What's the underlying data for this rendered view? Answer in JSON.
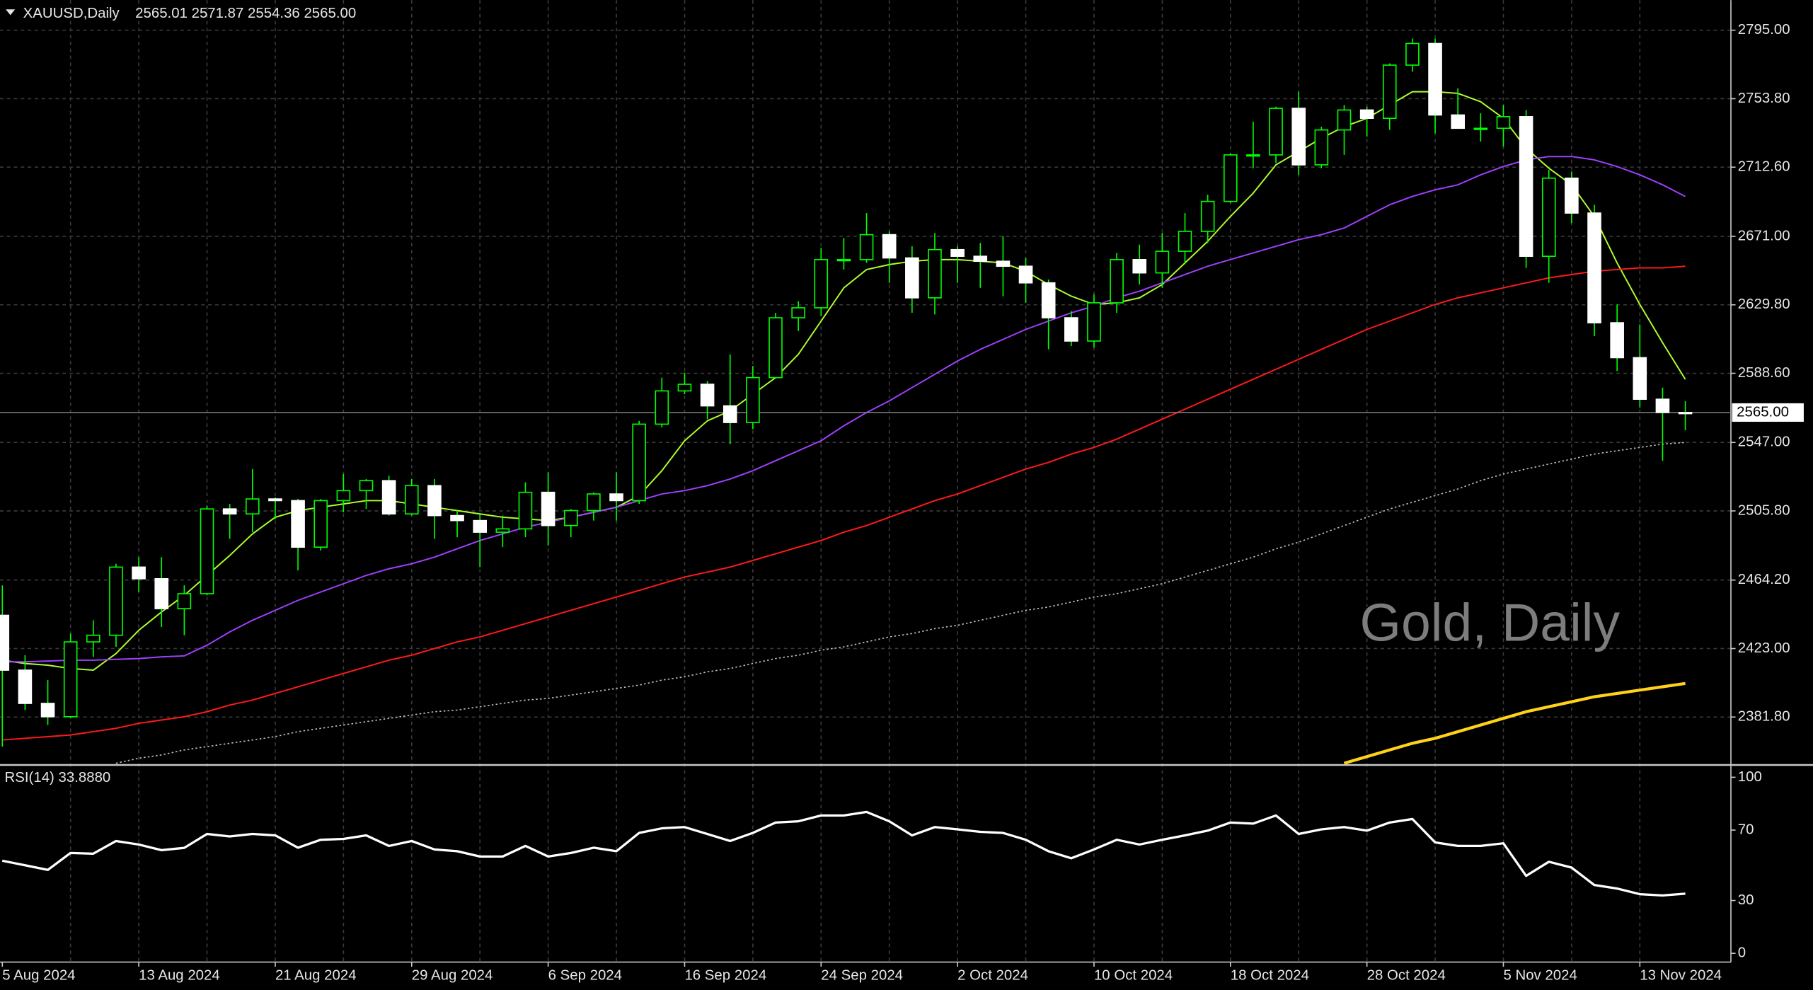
{
  "chart_data": [
    {
      "type": "candlestick",
      "header": {
        "symbol": "XAUUSD,Daily",
        "ohlc": "2565.01 2571.87 2554.36 2565.00"
      },
      "watermark": "Gold, Daily",
      "categories": [
        "5 Aug 2024",
        null,
        null,
        null,
        null,
        null,
        "13 Aug 2024",
        null,
        null,
        null,
        null,
        null,
        "21 Aug 2024",
        null,
        null,
        null,
        null,
        null,
        "29 Aug 2024",
        null,
        null,
        null,
        null,
        null,
        "6 Sep 2024",
        null,
        null,
        null,
        null,
        null,
        "16 Sep 2024",
        null,
        null,
        null,
        null,
        null,
        "24 Sep 2024",
        null,
        null,
        null,
        null,
        null,
        "2 Oct 2024",
        null,
        null,
        null,
        null,
        null,
        "10 Oct 2024",
        null,
        null,
        null,
        null,
        null,
        "18 Oct 2024",
        null,
        null,
        null,
        null,
        null,
        "28 Oct 2024",
        null,
        null,
        null,
        null,
        null,
        "5 Nov 2024",
        null,
        null,
        null,
        null,
        null,
        "13 Nov 2024",
        null,
        null
      ],
      "open": [
        2443,
        2410,
        2390,
        2382,
        2427,
        2431,
        2472,
        2465,
        2447,
        2456,
        2507,
        2504,
        2513,
        2512,
        2484,
        2512,
        2518,
        2524,
        2504,
        2521,
        2503,
        2500,
        2493,
        2495,
        2517,
        2497,
        2506,
        2516,
        2512,
        2558,
        2578,
        2582,
        2569,
        2559,
        2586,
        2622,
        2628,
        2657,
        2657,
        2672,
        2658,
        2634,
        2663,
        2659,
        2656,
        2653,
        2643,
        2622,
        2608,
        2631,
        2657,
        2649,
        2662,
        2674,
        2692,
        2720,
        2720,
        2748,
        2714,
        2735,
        2747,
        2742,
        2774,
        2787,
        2744,
        2736,
        2736,
        2743,
        2659,
        2706,
        2685,
        2619,
        2598,
        2573,
        2565.01
      ],
      "high": [
        2461,
        2419,
        2404,
        2432,
        2440,
        2474,
        2478,
        2478,
        2461,
        2509,
        2510,
        2531,
        2514,
        2513,
        2513,
        2528,
        2525,
        2527,
        2525,
        2525,
        2506,
        2504,
        2503,
        2523,
        2529,
        2507,
        2517,
        2529,
        2560,
        2586,
        2589,
        2584,
        2600,
        2593,
        2625,
        2632,
        2664,
        2670,
        2685,
        2674,
        2665,
        2673,
        2665,
        2667,
        2671,
        2658,
        2645,
        2626,
        2636,
        2661,
        2666,
        2673,
        2685,
        2696,
        2721,
        2740,
        2749,
        2758,
        2737,
        2750,
        2749,
        2775,
        2790,
        2790,
        2760,
        2745,
        2750,
        2747,
        2711,
        2710,
        2690,
        2630,
        2618,
        2580,
        2571.87
      ],
      "low": [
        2364,
        2386,
        2377,
        2381,
        2418,
        2424,
        2457,
        2436,
        2431,
        2455,
        2489,
        2493,
        2501,
        2470,
        2482,
        2505,
        2507,
        2503,
        2503,
        2489,
        2490,
        2472,
        2484,
        2490,
        2485,
        2490,
        2500,
        2500,
        2510,
        2556,
        2576,
        2561,
        2546,
        2555,
        2586,
        2614,
        2623,
        2651,
        2655,
        2643,
        2625,
        2624,
        2643,
        2640,
        2635,
        2631,
        2603,
        2605,
        2604,
        2625,
        2642,
        2640,
        2655,
        2667,
        2691,
        2712,
        2715,
        2708,
        2712,
        2720,
        2731,
        2735,
        2770,
        2733,
        2736,
        2728,
        2725,
        2652,
        2643,
        2679,
        2611,
        2590,
        2568,
        2536,
        2554.36
      ],
      "close": [
        2410,
        2390,
        2382,
        2427,
        2431,
        2472,
        2465,
        2447,
        2456,
        2507,
        2504,
        2513,
        2512,
        2484,
        2512,
        2518,
        2524,
        2504,
        2521,
        2503,
        2500,
        2493,
        2495,
        2517,
        2497,
        2506,
        2516,
        2512,
        2558,
        2578,
        2582,
        2569,
        2559,
        2586,
        2622,
        2628,
        2657,
        2657,
        2672,
        2658,
        2634,
        2663,
        2659,
        2656,
        2653,
        2643,
        2622,
        2608,
        2631,
        2657,
        2649,
        2662,
        2674,
        2692,
        2720,
        2720,
        2748,
        2714,
        2735,
        2747,
        2742,
        2774,
        2787,
        2744,
        2736,
        2736,
        2743,
        2659,
        2706,
        2685,
        2619,
        2598,
        2573,
        2565,
        2565.0
      ],
      "up_color": "#00ff00",
      "down_color": "#ffffff",
      "series": [
        {
          "color": "#adff2f",
          "style": "solid",
          "values": [
            2416,
            2414,
            2413,
            2411,
            2410,
            2420,
            2434,
            2445,
            2455,
            2467,
            2479,
            2492,
            2502,
            2506,
            2508,
            2510,
            2512,
            2512,
            2510,
            2508,
            2506,
            2504,
            2502,
            2501,
            2500,
            2502,
            2505,
            2508,
            2515,
            2530,
            2548,
            2560,
            2566,
            2576,
            2586,
            2600,
            2620,
            2640,
            2651,
            2654,
            2656,
            2657,
            2657,
            2656,
            2655,
            2650,
            2642,
            2635,
            2630,
            2631,
            2634,
            2642,
            2655,
            2668,
            2683,
            2697,
            2714,
            2722,
            2730,
            2737,
            2742,
            2750,
            2758,
            2758,
            2757,
            2752,
            2742,
            2724,
            2712,
            2702,
            2683,
            2655,
            2630,
            2607,
            2585
          ]
        },
        {
          "color": "#a040ff",
          "style": "solid",
          "values": [
            2415,
            2415,
            2415.5,
            2416,
            2416,
            2416.5,
            2417,
            2418,
            2418.6,
            2425,
            2433,
            2440,
            2446,
            2452,
            2457,
            2462,
            2467,
            2471,
            2474,
            2478,
            2483,
            2488,
            2492,
            2496,
            2499,
            2502,
            2505,
            2508,
            2512,
            2516,
            2518,
            2521,
            2525,
            2530,
            2536,
            2542,
            2548,
            2557,
            2565,
            2572,
            2580,
            2588,
            2596,
            2603,
            2609,
            2615,
            2620,
            2625,
            2629,
            2634,
            2638,
            2643,
            2648,
            2653,
            2657,
            2661,
            2665,
            2669,
            2672,
            2676,
            2683,
            2690,
            2695,
            2699,
            2702,
            2708,
            2713,
            2717,
            2719,
            2719,
            2717,
            2713,
            2708,
            2702,
            2695
          ]
        },
        {
          "color": "#ff1a1a",
          "style": "solid",
          "values": [
            2368,
            2369,
            2370,
            2371,
            2373,
            2375,
            2378,
            2380,
            2382,
            2385,
            2389,
            2392,
            2396,
            2400,
            2404,
            2408,
            2412,
            2416,
            2419,
            2423,
            2427,
            2430,
            2434,
            2438,
            2442,
            2446,
            2450,
            2454,
            2458,
            2462,
            2466,
            2469,
            2472,
            2476,
            2480,
            2484,
            2488,
            2493,
            2497,
            2502,
            2507,
            2512,
            2516,
            2521,
            2526,
            2531,
            2535,
            2540,
            2544,
            2549,
            2555,
            2561,
            2567,
            2573,
            2579,
            2585,
            2591,
            2597,
            2603,
            2609,
            2615,
            2620,
            2625,
            2630,
            2634,
            2637,
            2640,
            2643,
            2646,
            2648,
            2650,
            2651,
            2652,
            2652,
            2653
          ]
        },
        {
          "color": "#c0c0c0",
          "style": "dotted",
          "values": [
            null,
            null,
            null,
            null,
            null,
            2354,
            2357,
            2359,
            2362,
            2364,
            2366,
            2368,
            2370,
            2373,
            2375,
            2377,
            2379,
            2381,
            2383,
            2385,
            2386,
            2388,
            2390,
            2392,
            2393,
            2395,
            2397,
            2399,
            2401,
            2404,
            2406,
            2409,
            2411,
            2414,
            2417,
            2419,
            2422,
            2424,
            2427,
            2430,
            2432,
            2435,
            2437,
            2440,
            2443,
            2446,
            2448,
            2451,
            2454,
            2456,
            2459,
            2462,
            2466,
            2470,
            2474,
            2478,
            2483,
            2487,
            2492,
            2497,
            2502,
            2507,
            2511,
            2515,
            2519,
            2524,
            2528,
            2531,
            2534,
            2537,
            2540,
            2542,
            2544,
            2546,
            2547
          ]
        },
        {
          "color": "#ffd21a",
          "style": "thick",
          "values": [
            null,
            null,
            null,
            null,
            null,
            null,
            null,
            null,
            null,
            null,
            null,
            null,
            null,
            null,
            null,
            null,
            null,
            null,
            null,
            null,
            null,
            null,
            null,
            null,
            null,
            null,
            null,
            null,
            null,
            null,
            null,
            null,
            null,
            null,
            null,
            null,
            null,
            null,
            null,
            null,
            null,
            null,
            null,
            null,
            null,
            null,
            null,
            null,
            null,
            null,
            null,
            null,
            null,
            null,
            null,
            null,
            null,
            null,
            null,
            2354,
            2358,
            2362,
            2366,
            2369,
            2373,
            2377,
            2381,
            2385,
            2388,
            2391,
            2394,
            2396,
            2398,
            2400,
            2402
          ]
        }
      ],
      "ylim": [
        2353.3,
        2813.1
      ],
      "yticks": [
        {
          "value": 2795,
          "label": "2795.00"
        },
        {
          "value": 2753.8,
          "label": "2753.80"
        },
        {
          "value": 2712.6,
          "label": "2712.60"
        },
        {
          "value": 2671,
          "label": "2671.00"
        },
        {
          "value": 2629.8,
          "label": "2629.80"
        },
        {
          "value": 2588.6,
          "label": "2588.60"
        },
        {
          "value": 2547,
          "label": "2547.00"
        },
        {
          "value": 2505.8,
          "label": "2505.80"
        },
        {
          "value": 2464.2,
          "label": "2464.20"
        },
        {
          "value": 2423,
          "label": "2423.00"
        },
        {
          "value": 2381.8,
          "label": "2381.80"
        }
      ],
      "price_line": {
        "value": 2565,
        "label": "2565.00"
      },
      "grid": true
    },
    {
      "type": "line",
      "title": "RSI(14) 33.8880",
      "color": "#ffffff",
      "values": [
        52.6,
        50,
        47.4,
        57,
        56.6,
        63.8,
        61.8,
        58.6,
        59.9,
        67.8,
        66.4,
        67.8,
        67,
        60,
        64.5,
        65,
        67,
        61,
        63.8,
        59,
        58,
        55,
        55,
        61,
        55,
        57,
        60,
        58,
        68.4,
        71,
        71.7,
        67.8,
        63.8,
        68.4,
        74.3,
        75,
        78.3,
        78.3,
        80.3,
        75,
        67,
        71.7,
        70.4,
        69,
        68.4,
        64.5,
        58,
        54,
        59,
        64.5,
        61.8,
        64.5,
        67,
        69.7,
        74.3,
        73.7,
        78.3,
        67.8,
        70.4,
        71.7,
        69.7,
        74.3,
        76.3,
        63,
        61,
        61,
        62.5,
        44,
        52,
        48.7,
        38.8,
        36.8,
        33.6,
        32.9,
        33.888
      ],
      "ylim": [
        -5,
        106
      ],
      "yticks": [
        100,
        70,
        30,
        0
      ]
    }
  ]
}
